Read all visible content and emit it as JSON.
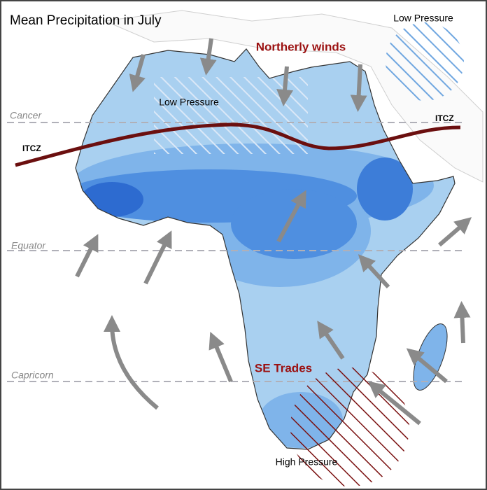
{
  "title": "Mean Precipitation in July",
  "labels": {
    "low_pressure_top": "Low Pressure",
    "northerly_winds": "Northerly winds",
    "low_pressure_sahara": "Low Pressure",
    "cancer": "Cancer",
    "itcz_west": "ITCZ",
    "itcz_east": "ITCZ",
    "equator": "Equator",
    "se_trades": "SE Trades",
    "capricorn": "Capricorn",
    "high_pressure": "High Pressure"
  }
}
